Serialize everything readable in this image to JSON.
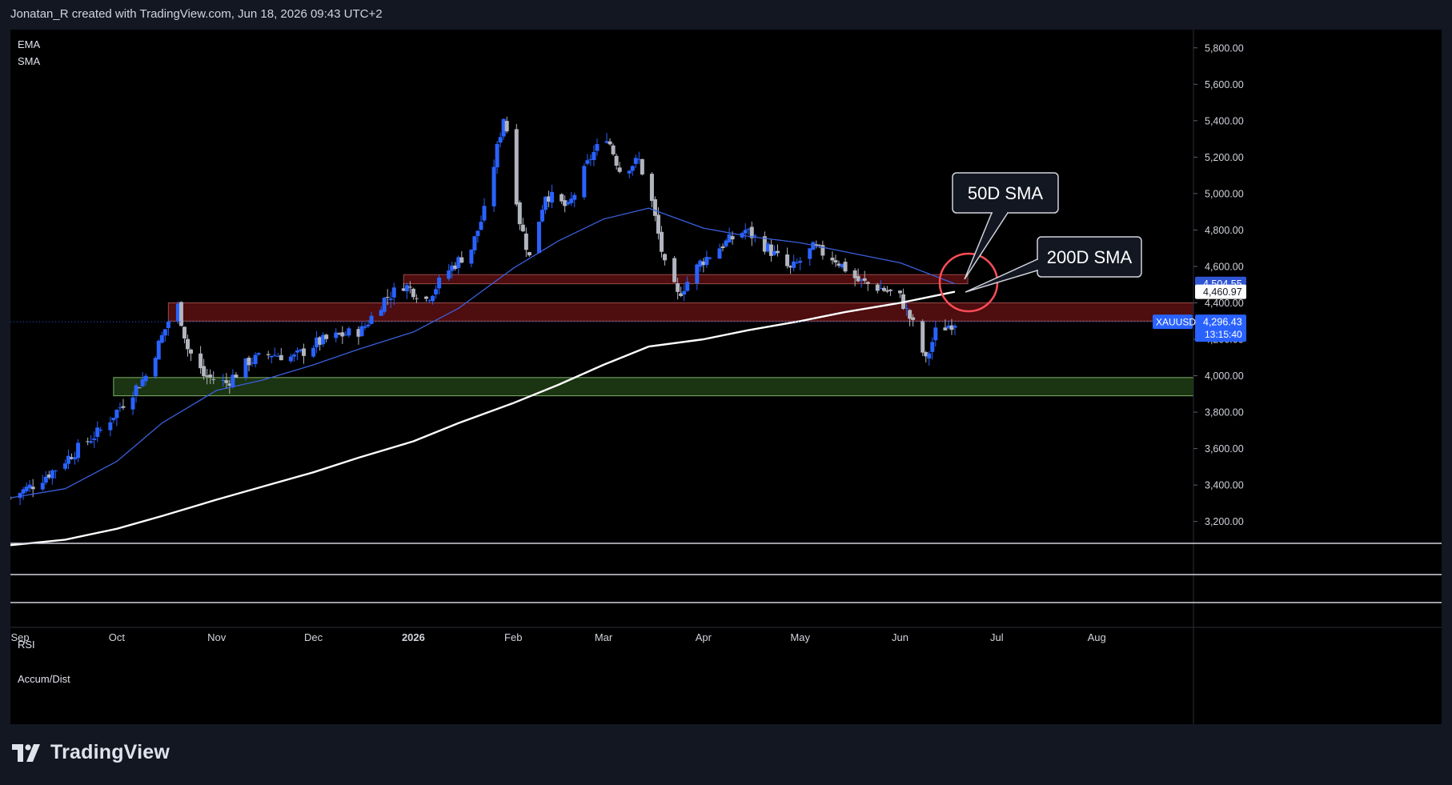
{
  "header": {
    "text": "Jonatan_R created with TradingView.com, Jun 18, 2026 09:43 UTC+2"
  },
  "legend": {
    "items": [
      "EMA",
      "SMA"
    ]
  },
  "panes": {
    "rsi_label": "RSI",
    "ad_label": "Accum/Dist"
  },
  "symbol": "XAUUSD",
  "brand": {
    "name": "TradingView"
  },
  "colors": {
    "bull": "#2962ff",
    "bear": "#b2b5be",
    "sma50": "#3a5fdc",
    "sma200": "#ffffff",
    "resistance": "#5c0f12",
    "support": "#1e3a14",
    "circle": "#ff4d57"
  },
  "price_labels": {
    "sma50": "4,504.55",
    "sma200": "4,460.97",
    "last_price": "4,296.43",
    "countdown": "13:15:40"
  },
  "annotations": {
    "sma50_callout": "50D SMA",
    "sma200_callout": "200D SMA"
  },
  "chart_data": {
    "type": "candlestick",
    "x_ticks": [
      "Sep",
      "Oct",
      "Nov",
      "Dec",
      "2026",
      "Feb",
      "Mar",
      "Apr",
      "May",
      "Jun",
      "Jul",
      "Aug"
    ],
    "y_ticks": [
      3200,
      3400,
      3600,
      3800,
      4000,
      4200,
      4400,
      4600,
      4800,
      5000,
      5200,
      5400,
      5600,
      5800
    ],
    "y_tick_labels": [
      "3,200.00",
      "3,400.00",
      "3,600.00",
      "3,800.00",
      "4,000.00",
      "4,200.00",
      "4,400.00",
      "4,600.00",
      "4,800.00",
      "5,000.00",
      "5,200.00",
      "5,400.00",
      "5,600.00",
      "5,800.00"
    ],
    "ylim": [
      3080,
      5900
    ],
    "date_range": [
      "2025-08-29",
      "2026-08-31"
    ],
    "last_price": 4296.43,
    "zones": [
      {
        "kind": "resistance",
        "from": "2025-10-17",
        "to": "2026-08-31",
        "low": 4300,
        "high": 4400
      },
      {
        "kind": "resistance",
        "from": "2025-12-29",
        "to": "2026-06-22",
        "low": 4505,
        "high": 4555
      },
      {
        "kind": "support",
        "from": "2025-09-30",
        "to": "2026-08-31",
        "low": 3890,
        "high": 3990
      }
    ],
    "sma50": [
      [
        "2025-08-29",
        3330
      ],
      [
        "2025-09-15",
        3380
      ],
      [
        "2025-10-01",
        3530
      ],
      [
        "2025-10-15",
        3740
      ],
      [
        "2025-11-01",
        3920
      ],
      [
        "2025-11-15",
        3975
      ],
      [
        "2025-12-01",
        4060
      ],
      [
        "2025-12-15",
        4145
      ],
      [
        "2026-01-01",
        4240
      ],
      [
        "2026-01-15",
        4370
      ],
      [
        "2026-02-01",
        4590
      ],
      [
        "2026-02-15",
        4740
      ],
      [
        "2026-03-01",
        4860
      ],
      [
        "2026-03-15",
        4920
      ],
      [
        "2026-04-01",
        4810
      ],
      [
        "2026-04-15",
        4765
      ],
      [
        "2026-05-01",
        4730
      ],
      [
        "2026-05-15",
        4680
      ],
      [
        "2026-06-01",
        4620
      ],
      [
        "2026-06-18",
        4505
      ]
    ],
    "sma200": [
      [
        "2025-08-29",
        3070
      ],
      [
        "2025-09-15",
        3100
      ],
      [
        "2025-10-01",
        3160
      ],
      [
        "2025-10-15",
        3230
      ],
      [
        "2025-11-01",
        3320
      ],
      [
        "2025-11-15",
        3390
      ],
      [
        "2025-12-01",
        3470
      ],
      [
        "2025-12-15",
        3550
      ],
      [
        "2026-01-01",
        3640
      ],
      [
        "2026-01-15",
        3740
      ],
      [
        "2026-02-01",
        3850
      ],
      [
        "2026-02-15",
        3950
      ],
      [
        "2026-03-01",
        4060
      ],
      [
        "2026-03-15",
        4160
      ],
      [
        "2026-04-01",
        4200
      ],
      [
        "2026-04-15",
        4250
      ],
      [
        "2026-05-01",
        4300
      ],
      [
        "2026-05-15",
        4350
      ],
      [
        "2026-06-01",
        4400
      ],
      [
        "2026-06-18",
        4461
      ]
    ],
    "price_path": [
      [
        "2025-08-29",
        3330
      ],
      [
        "2025-09-05",
        3400
      ],
      [
        "2025-09-12",
        3490
      ],
      [
        "2025-09-19",
        3600
      ],
      [
        "2025-09-26",
        3700
      ],
      [
        "2025-10-03",
        3850
      ],
      [
        "2025-10-10",
        4000
      ],
      [
        "2025-10-17",
        4300
      ],
      [
        "2025-10-20",
        4380
      ],
      [
        "2025-10-23",
        4150
      ],
      [
        "2025-10-28",
        4000
      ],
      [
        "2025-11-04",
        3960
      ],
      [
        "2025-11-11",
        4080
      ],
      [
        "2025-11-18",
        4120
      ],
      [
        "2025-11-25",
        4100
      ],
      [
        "2025-12-02",
        4180
      ],
      [
        "2025-12-09",
        4220
      ],
      [
        "2025-12-16",
        4250
      ],
      [
        "2025-12-23",
        4420
      ],
      [
        "2025-12-29",
        4500
      ],
      [
        "2026-01-05",
        4420
      ],
      [
        "2026-01-12",
        4580
      ],
      [
        "2026-01-19",
        4700
      ],
      [
        "2026-01-23",
        4900
      ],
      [
        "2026-01-29",
        5420
      ],
      [
        "2026-01-30",
        5350
      ],
      [
        "2026-02-03",
        4850
      ],
      [
        "2026-02-06",
        4650
      ],
      [
        "2026-02-11",
        5000
      ],
      [
        "2026-02-18",
        4920
      ],
      [
        "2026-02-25",
        5200
      ],
      [
        "2026-03-02",
        5320
      ],
      [
        "2026-03-06",
        5130
      ],
      [
        "2026-03-12",
        5180
      ],
      [
        "2026-03-16",
        4950
      ],
      [
        "2026-03-20",
        4600
      ],
      [
        "2026-03-24",
        4440
      ],
      [
        "2026-03-31",
        4620
      ],
      [
        "2026-04-07",
        4720
      ],
      [
        "2026-04-14",
        4800
      ],
      [
        "2026-04-21",
        4700
      ],
      [
        "2026-04-28",
        4580
      ],
      [
        "2026-05-05",
        4700
      ],
      [
        "2026-05-12",
        4640
      ],
      [
        "2026-05-19",
        4520
      ],
      [
        "2026-05-26",
        4480
      ],
      [
        "2026-06-01",
        4430
      ],
      [
        "2026-06-05",
        4280
      ],
      [
        "2026-06-09",
        4080
      ],
      [
        "2026-06-12",
        4240
      ],
      [
        "2026-06-18",
        4296
      ]
    ]
  }
}
